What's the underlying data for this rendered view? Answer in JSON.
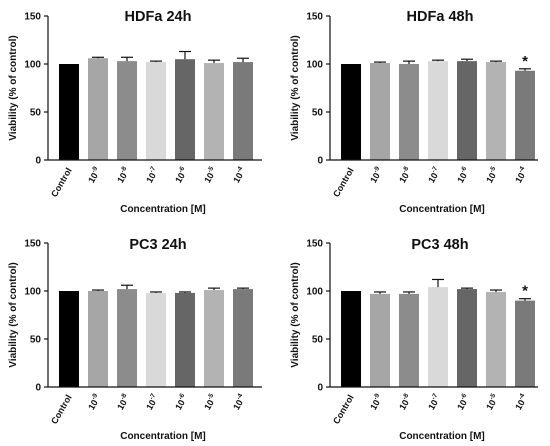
{
  "chart_data": [
    {
      "type": "bar",
      "title": "HDFa  24h",
      "xlabel": "Concentration [M]",
      "ylabel": "Viability (% of control)",
      "ylim": [
        0,
        150
      ],
      "yticks": [
        "0",
        "50",
        "100",
        "150"
      ],
      "categories": [
        {
          "base": "Control",
          "exp": ""
        },
        {
          "base": "10",
          "exp": "-9"
        },
        {
          "base": "10",
          "exp": "-8"
        },
        {
          "base": "10",
          "exp": "-7"
        },
        {
          "base": "10",
          "exp": "-6"
        },
        {
          "base": "10",
          "exp": "-5"
        },
        {
          "base": "10",
          "exp": "-4"
        }
      ],
      "values": [
        100,
        106,
        103,
        102,
        105,
        101,
        102
      ],
      "errors": [
        0,
        1,
        4,
        1,
        8,
        3,
        4
      ],
      "colors": [
        "#000000",
        "#a6a6a6",
        "#8c8c8c",
        "#d9d9d9",
        "#666666",
        "#b3b3b3",
        "#7a7a7a"
      ],
      "annotations": [
        "",
        "",
        "",
        "",
        "",
        "",
        ""
      ]
    },
    {
      "type": "bar",
      "title": "HDFa  48h",
      "xlabel": "Concentration [M]",
      "ylabel": "Viability (% of control)",
      "ylim": [
        0,
        150
      ],
      "yticks": [
        "0",
        "50",
        "100",
        "150"
      ],
      "categories": [
        {
          "base": "Control",
          "exp": ""
        },
        {
          "base": "10",
          "exp": "-9"
        },
        {
          "base": "10",
          "exp": "-8"
        },
        {
          "base": "10",
          "exp": "-7"
        },
        {
          "base": "10",
          "exp": "-6"
        },
        {
          "base": "10",
          "exp": "-5"
        },
        {
          "base": "10",
          "exp": "-4"
        }
      ],
      "values": [
        100,
        101,
        100,
        103,
        103,
        102,
        93
      ],
      "errors": [
        0,
        1,
        3,
        1,
        2,
        1,
        2
      ],
      "colors": [
        "#000000",
        "#a6a6a6",
        "#8c8c8c",
        "#d9d9d9",
        "#666666",
        "#b3b3b3",
        "#7a7a7a"
      ],
      "annotations": [
        "",
        "",
        "",
        "",
        "",
        "",
        "*"
      ]
    },
    {
      "type": "bar",
      "title": "PC3  24h",
      "xlabel": "Concentration [M]",
      "ylabel": "Viability (% of control)",
      "ylim": [
        0,
        150
      ],
      "yticks": [
        "0",
        "50",
        "100",
        "150"
      ],
      "categories": [
        {
          "base": "Control",
          "exp": ""
        },
        {
          "base": "10",
          "exp": "-9"
        },
        {
          "base": "10",
          "exp": "-8"
        },
        {
          "base": "10",
          "exp": "-7"
        },
        {
          "base": "10",
          "exp": "-6"
        },
        {
          "base": "10",
          "exp": "-5"
        },
        {
          "base": "10",
          "exp": "-4"
        }
      ],
      "values": [
        100,
        100,
        102,
        98,
        98,
        101,
        102
      ],
      "errors": [
        0,
        1,
        4,
        1,
        1,
        2,
        1
      ],
      "colors": [
        "#000000",
        "#a6a6a6",
        "#8c8c8c",
        "#d9d9d9",
        "#666666",
        "#b3b3b3",
        "#7a7a7a"
      ],
      "annotations": [
        "",
        "",
        "",
        "",
        "",
        "",
        ""
      ]
    },
    {
      "type": "bar",
      "title": "PC3  48h",
      "xlabel": "Concentration [M]",
      "ylabel": "Viability (% of control)",
      "ylim": [
        0,
        150
      ],
      "yticks": [
        "0",
        "50",
        "100",
        "150"
      ],
      "categories": [
        {
          "base": "Control",
          "exp": ""
        },
        {
          "base": "10",
          "exp": "-9"
        },
        {
          "base": "10",
          "exp": "-8"
        },
        {
          "base": "10",
          "exp": "-7"
        },
        {
          "base": "10",
          "exp": "-6"
        },
        {
          "base": "10",
          "exp": "-5"
        },
        {
          "base": "10",
          "exp": "-4"
        }
      ],
      "values": [
        100,
        97,
        97,
        104,
        102,
        99,
        90
      ],
      "errors": [
        0,
        2,
        2,
        8,
        1,
        2,
        2
      ],
      "colors": [
        "#000000",
        "#a6a6a6",
        "#8c8c8c",
        "#d9d9d9",
        "#666666",
        "#b3b3b3",
        "#7a7a7a"
      ],
      "annotations": [
        "",
        "",
        "",
        "",
        "",
        "",
        "*"
      ]
    }
  ]
}
